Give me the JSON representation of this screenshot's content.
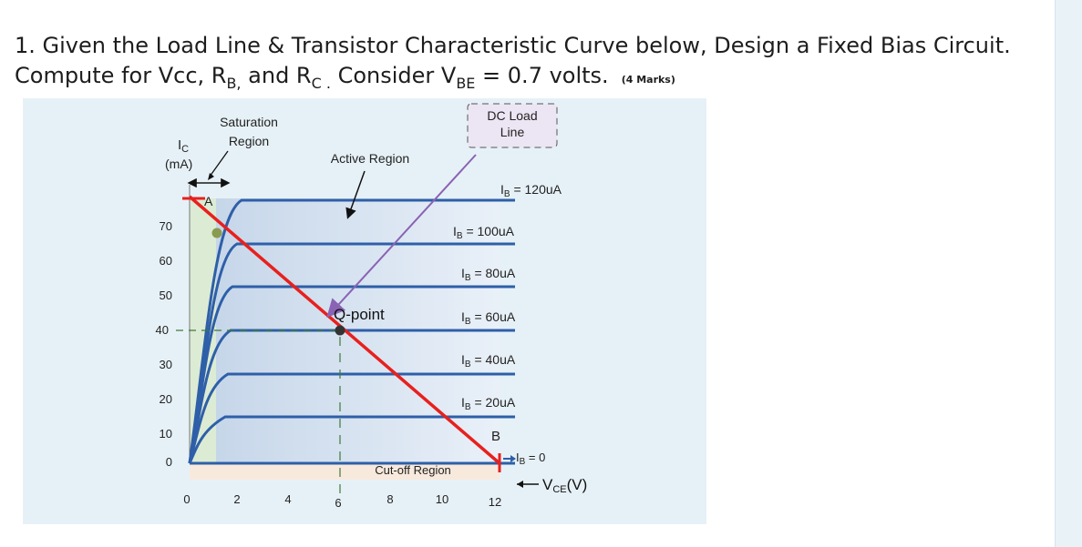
{
  "question": {
    "line1": "1. Given the Load Line & Transistor Characteristic Curve below, Design a Fixed Bias Circuit.",
    "line2_prefix": "Compute for Vcc, R",
    "rb_sub": "B,",
    "line2_mid": " and R",
    "rc_sub": "C .",
    "line2_consider": " Consider V",
    "vbe_sub": "BE",
    "line2_eq": " = 0.7 volts.",
    "marks": "(4 Marks)"
  },
  "diagram": {
    "ic_label_main": "I",
    "ic_label_sub": "C",
    "ic_unit": "(mA)",
    "saturation_line1": "Saturation",
    "saturation_line2": "Region",
    "active_region": "Active Region",
    "dc_load_line1": "DC Load",
    "dc_load_line2": "Line",
    "point_a": "A",
    "point_b": "B",
    "q_point": "Q-point",
    "cutoff": "Cut-off Region",
    "vce_main": "V",
    "vce_sub": "CE",
    "vce_unit": "(V)",
    "y_ticks": [
      "70",
      "60",
      "50",
      "40",
      "30",
      "20",
      "10",
      "0"
    ],
    "x_ticks": [
      "0",
      "2",
      "4",
      "6",
      "8",
      "10",
      "12"
    ],
    "ib_curves": [
      {
        "label_main": "I",
        "label_sub": "B",
        "label_value": " = 120uA"
      },
      {
        "label_main": "I",
        "label_sub": "B",
        "label_value": " = 100uA"
      },
      {
        "label_main": "I",
        "label_sub": "B",
        "label_value": " = 80uA"
      },
      {
        "label_main": "I",
        "label_sub": "B",
        "label_value": " = 60uA"
      },
      {
        "label_main": "I",
        "label_sub": "B",
        "label_value": " = 40uA"
      },
      {
        "label_main": "I",
        "label_sub": "B",
        "label_value": " = 20uA"
      },
      {
        "label_main": "I",
        "label_sub": "B",
        "label_value": " = 0"
      }
    ],
    "colors": {
      "curve": "#2e5fa8",
      "load_line": "#e8201e",
      "arrow_purple": "#8a63b4",
      "saturation_fill": "#dcebd4",
      "cutoff_fill": "#f8e9dd",
      "active_fill": "#c9d8ea"
    }
  }
}
